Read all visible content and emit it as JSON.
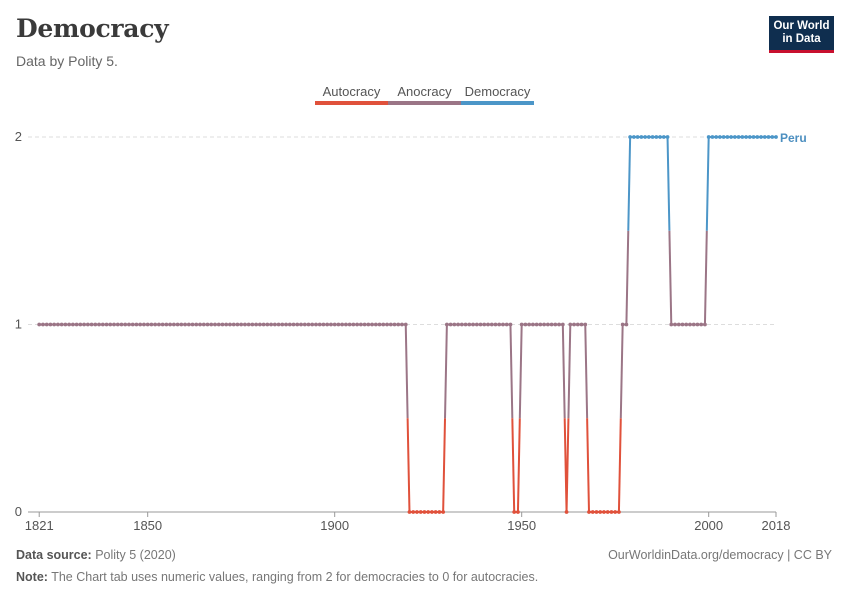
{
  "header": {
    "title": "Democracy",
    "subtitle": "Data by Polity 5.",
    "logo_line1": "Our World",
    "logo_line2": "in Data"
  },
  "footer": {
    "source_label": "Data source:",
    "source_value": "Polity 5 (2020)",
    "url": "OurWorldinData.org/democracy | CC BY",
    "note_label": "Note:",
    "note_value": "The Chart tab uses numeric values, ranging from 2 for democracies to 0 for autocracies."
  },
  "chart_data": {
    "type": "line",
    "title": "Democracy",
    "subtitle": "Data by Polity 5.",
    "xlabel": "",
    "ylabel": "",
    "xlim": [
      1818,
      2018
    ],
    "ylim": [
      0,
      2
    ],
    "x_ticks": [
      1821,
      1850,
      1900,
      1950,
      2000,
      2018
    ],
    "y_ticks": [
      0,
      1,
      2
    ],
    "grid": "horizontal-dashed",
    "legend": {
      "placement": "top-center",
      "entries": [
        {
          "label": "Autocracy",
          "color": "#e0513b"
        },
        {
          "label": "Anocracy",
          "color": "#9b7586"
        },
        {
          "label": "Democracy",
          "color": "#4c96c8"
        }
      ]
    },
    "series": [
      {
        "name": "Peru",
        "segments": [
          {
            "start": 1821,
            "end": 1919,
            "value": 1
          },
          {
            "start": 1920,
            "end": 1929,
            "value": 0
          },
          {
            "start": 1930,
            "end": 1947,
            "value": 1
          },
          {
            "start": 1948,
            "end": 1949,
            "value": 0
          },
          {
            "start": 1950,
            "end": 1961,
            "value": 1
          },
          {
            "start": 1962,
            "end": 1962,
            "value": 0
          },
          {
            "start": 1963,
            "end": 1967,
            "value": 1
          },
          {
            "start": 1968,
            "end": 1976,
            "value": 0
          },
          {
            "start": 1977,
            "end": 1978,
            "value": 1
          },
          {
            "start": 1979,
            "end": 1989,
            "value": 2
          },
          {
            "start": 1990,
            "end": 1999,
            "value": 1
          },
          {
            "start": 2000,
            "end": 2018,
            "value": 2
          }
        ]
      }
    ]
  },
  "colors": {
    "autocracy": "#e0513b",
    "anocracy": "#9b7586",
    "democracy": "#4c96c8",
    "grid": "#dddddd"
  }
}
